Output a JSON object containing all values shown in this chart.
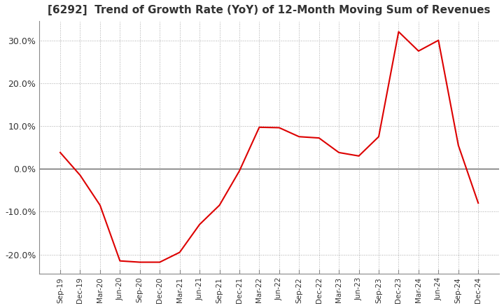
{
  "title": "[6292]  Trend of Growth Rate (YoY) of 12-Month Moving Sum of Revenues",
  "title_fontsize": 11,
  "line_color": "#dd0000",
  "background_color": "#ffffff",
  "grid_color": "#aaaaaa",
  "ylim": [
    -0.245,
    0.345
  ],
  "yticks": [
    -0.2,
    -0.1,
    0.0,
    0.1,
    0.2,
    0.3
  ],
  "ytick_labels": [
    "-20.0%",
    "-10.0%",
    "0.0%",
    "10.0%",
    "20.0%",
    "30.0%"
  ],
  "x_labels": [
    "Sep-19",
    "Dec-19",
    "Mar-20",
    "Jun-20",
    "Sep-20",
    "Dec-20",
    "Mar-21",
    "Jun-21",
    "Sep-21",
    "Dec-21",
    "Mar-22",
    "Jun-22",
    "Sep-22",
    "Dec-22",
    "Mar-23",
    "Jun-23",
    "Sep-23",
    "Dec-23",
    "Mar-24",
    "Jun-24",
    "Sep-24",
    "Dec-24"
  ],
  "values": [
    0.038,
    -0.015,
    -0.085,
    -0.215,
    -0.218,
    -0.218,
    -0.195,
    -0.13,
    -0.085,
    -0.005,
    0.097,
    0.096,
    0.075,
    0.072,
    0.038,
    0.03,
    0.075,
    0.32,
    0.275,
    0.3,
    0.055,
    -0.08
  ]
}
